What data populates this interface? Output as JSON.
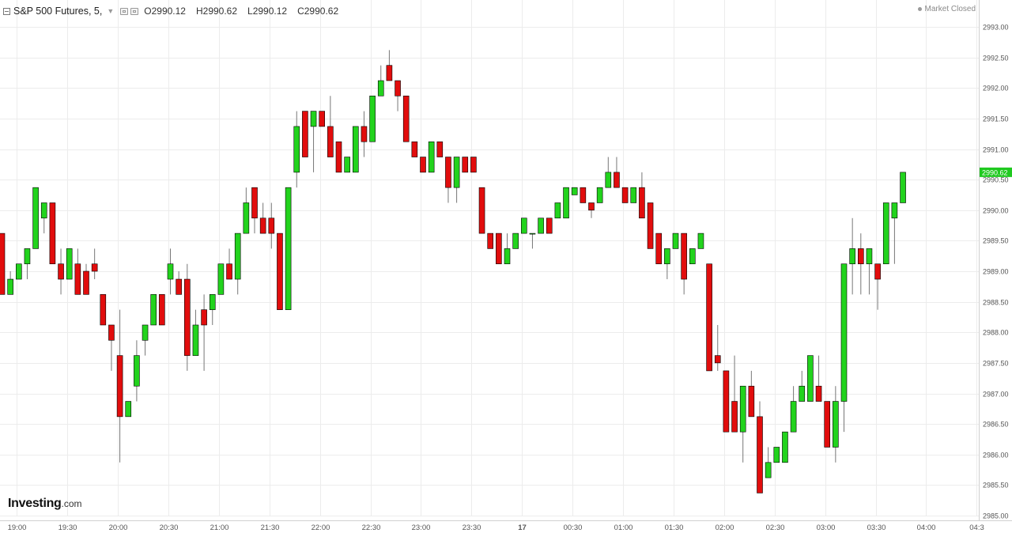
{
  "header": {
    "symbol": "S&P 500 Futures, 5,",
    "caret": "▼",
    "open": "O2990.12",
    "high": "H2990.62",
    "low": "L2990.12",
    "close": "C2990.62",
    "market_status": "Market Closed"
  },
  "logo": {
    "main": "Investing",
    "suffix": ".com"
  },
  "colors": {
    "up": "#22d31d",
    "down": "#e10d0d",
    "last_price_bg": "#1fc91f",
    "grid": "#ececec",
    "axis_text": "#555555"
  },
  "chart_data": {
    "type": "candlestick",
    "timeframe": "5",
    "last_price_label": "2990.62",
    "ylim": [
      2985.0,
      2993.0
    ],
    "y_ticks": [
      "2985.00",
      "2985.50",
      "2986.00",
      "2986.50",
      "2987.00",
      "2987.50",
      "2988.00",
      "2988.50",
      "2989.00",
      "2989.50",
      "2990.00",
      "2990.50",
      "2991.00",
      "2991.50",
      "2992.00",
      "2992.50",
      "2993.00"
    ],
    "x_ticks": [
      "19:00",
      "19:30",
      "20:00",
      "20:30",
      "21:00",
      "21:30",
      "22:00",
      "22:30",
      "23:00",
      "23:30",
      "17",
      "00:30",
      "01:00",
      "01:30",
      "02:00",
      "02:30",
      "03:00",
      "03:30",
      "04:00",
      "04:3"
    ],
    "candles": [
      {
        "o": 2989.62,
        "h": 2989.62,
        "l": 2988.62,
        "c": 2988.62
      },
      {
        "o": 2988.62,
        "h": 2989.0,
        "l": 2988.62,
        "c": 2988.87
      },
      {
        "o": 2988.87,
        "h": 2989.12,
        "l": 2988.87,
        "c": 2989.12
      },
      {
        "o": 2989.12,
        "h": 2989.37,
        "l": 2988.87,
        "c": 2989.37
      },
      {
        "o": 2989.37,
        "h": 2990.37,
        "l": 2989.37,
        "c": 2990.37
      },
      {
        "o": 2989.87,
        "h": 2990.12,
        "l": 2989.62,
        "c": 2990.12
      },
      {
        "o": 2990.12,
        "h": 2990.12,
        "l": 2989.12,
        "c": 2989.12
      },
      {
        "o": 2989.12,
        "h": 2989.37,
        "l": 2988.62,
        "c": 2988.87
      },
      {
        "o": 2988.87,
        "h": 2989.37,
        "l": 2988.87,
        "c": 2989.37
      },
      {
        "o": 2989.12,
        "h": 2989.37,
        "l": 2988.62,
        "c": 2988.62
      },
      {
        "o": 2989.0,
        "h": 2989.12,
        "l": 2988.62,
        "c": 2988.62
      },
      {
        "o": 2989.12,
        "h": 2989.37,
        "l": 2988.87,
        "c": 2989.0
      },
      {
        "o": 2988.62,
        "h": 2988.62,
        "l": 2988.12,
        "c": 2988.12
      },
      {
        "o": 2988.12,
        "h": 2988.12,
        "l": 2987.37,
        "c": 2987.87
      },
      {
        "o": 2987.62,
        "h": 2988.37,
        "l": 2985.87,
        "c": 2986.62
      },
      {
        "o": 2986.62,
        "h": 2986.87,
        "l": 2986.62,
        "c": 2986.87
      },
      {
        "o": 2987.12,
        "h": 2987.87,
        "l": 2986.87,
        "c": 2987.62
      },
      {
        "o": 2987.87,
        "h": 2988.12,
        "l": 2987.62,
        "c": 2988.12
      },
      {
        "o": 2988.12,
        "h": 2988.62,
        "l": 2988.12,
        "c": 2988.62
      },
      {
        "o": 2988.62,
        "h": 2988.62,
        "l": 2988.12,
        "c": 2988.12
      },
      {
        "o": 2988.87,
        "h": 2989.37,
        "l": 2988.62,
        "c": 2989.12
      },
      {
        "o": 2988.87,
        "h": 2989.0,
        "l": 2988.62,
        "c": 2988.62
      },
      {
        "o": 2988.87,
        "h": 2989.12,
        "l": 2987.37,
        "c": 2987.62
      },
      {
        "o": 2987.62,
        "h": 2988.37,
        "l": 2987.62,
        "c": 2988.12
      },
      {
        "o": 2988.37,
        "h": 2988.62,
        "l": 2987.37,
        "c": 2988.12
      },
      {
        "o": 2988.37,
        "h": 2988.62,
        "l": 2988.12,
        "c": 2988.62
      },
      {
        "o": 2988.62,
        "h": 2989.12,
        "l": 2988.62,
        "c": 2989.12
      },
      {
        "o": 2989.12,
        "h": 2989.37,
        "l": 2988.87,
        "c": 2988.87
      },
      {
        "o": 2988.87,
        "h": 2989.62,
        "l": 2988.62,
        "c": 2989.62
      },
      {
        "o": 2989.62,
        "h": 2990.37,
        "l": 2989.62,
        "c": 2990.12
      },
      {
        "o": 2990.37,
        "h": 2990.37,
        "l": 2989.62,
        "c": 2989.87
      },
      {
        "o": 2989.87,
        "h": 2990.12,
        "l": 2989.62,
        "c": 2989.62
      },
      {
        "o": 2989.87,
        "h": 2990.12,
        "l": 2989.37,
        "c": 2989.62
      },
      {
        "o": 2989.62,
        "h": 2989.62,
        "l": 2988.37,
        "c": 2988.37
      },
      {
        "o": 2988.37,
        "h": 2990.37,
        "l": 2988.37,
        "c": 2990.37
      },
      {
        "o": 2990.62,
        "h": 2991.62,
        "l": 2990.37,
        "c": 2991.37
      },
      {
        "o": 2991.62,
        "h": 2991.62,
        "l": 2990.87,
        "c": 2990.87
      },
      {
        "o": 2991.37,
        "h": 2991.62,
        "l": 2990.62,
        "c": 2991.62
      },
      {
        "o": 2991.62,
        "h": 2991.62,
        "l": 2991.37,
        "c": 2991.37
      },
      {
        "o": 2991.37,
        "h": 2991.87,
        "l": 2990.87,
        "c": 2990.87
      },
      {
        "o": 2991.12,
        "h": 2991.12,
        "l": 2990.62,
        "c": 2990.62
      },
      {
        "o": 2990.62,
        "h": 2990.87,
        "l": 2990.62,
        "c": 2990.87
      },
      {
        "o": 2990.62,
        "h": 2991.37,
        "l": 2990.62,
        "c": 2991.37
      },
      {
        "o": 2991.37,
        "h": 2991.62,
        "l": 2990.87,
        "c": 2991.12
      },
      {
        "o": 2991.12,
        "h": 2991.87,
        "l": 2991.12,
        "c": 2991.87
      },
      {
        "o": 2991.87,
        "h": 2992.37,
        "l": 2991.87,
        "c": 2992.12
      },
      {
        "o": 2992.37,
        "h": 2992.62,
        "l": 2992.12,
        "c": 2992.12
      },
      {
        "o": 2992.12,
        "h": 2992.12,
        "l": 2991.62,
        "c": 2991.87
      },
      {
        "o": 2991.87,
        "h": 2991.87,
        "l": 2991.12,
        "c": 2991.12
      },
      {
        "o": 2991.12,
        "h": 2991.12,
        "l": 2990.87,
        "c": 2990.87
      },
      {
        "o": 2990.87,
        "h": 2990.87,
        "l": 2990.62,
        "c": 2990.62
      },
      {
        "o": 2990.62,
        "h": 2991.12,
        "l": 2990.62,
        "c": 2991.12
      },
      {
        "o": 2991.12,
        "h": 2991.12,
        "l": 2990.87,
        "c": 2990.87
      },
      {
        "o": 2990.87,
        "h": 2990.87,
        "l": 2990.12,
        "c": 2990.37
      },
      {
        "o": 2990.37,
        "h": 2990.87,
        "l": 2990.12,
        "c": 2990.87
      },
      {
        "o": 2990.87,
        "h": 2990.87,
        "l": 2990.62,
        "c": 2990.62
      },
      {
        "o": 2990.87,
        "h": 2990.87,
        "l": 2990.62,
        "c": 2990.62
      },
      {
        "o": 2990.37,
        "h": 2990.37,
        "l": 2989.62,
        "c": 2989.62
      },
      {
        "o": 2989.62,
        "h": 2989.62,
        "l": 2989.37,
        "c": 2989.37
      },
      {
        "o": 2989.62,
        "h": 2989.62,
        "l": 2989.12,
        "c": 2989.12
      },
      {
        "o": 2989.12,
        "h": 2989.62,
        "l": 2989.12,
        "c": 2989.37
      },
      {
        "o": 2989.37,
        "h": 2989.62,
        "l": 2989.37,
        "c": 2989.62
      },
      {
        "o": 2989.62,
        "h": 2989.87,
        "l": 2989.62,
        "c": 2989.87
      },
      {
        "o": 2989.62,
        "h": 2989.62,
        "l": 2989.37,
        "c": 2989.62
      },
      {
        "o": 2989.62,
        "h": 2989.87,
        "l": 2989.62,
        "c": 2989.87
      },
      {
        "o": 2989.87,
        "h": 2989.87,
        "l": 2989.62,
        "c": 2989.62
      },
      {
        "o": 2989.87,
        "h": 2990.12,
        "l": 2989.87,
        "c": 2990.12
      },
      {
        "o": 2989.87,
        "h": 2990.37,
        "l": 2989.87,
        "c": 2990.37
      },
      {
        "o": 2990.25,
        "h": 2990.37,
        "l": 2990.25,
        "c": 2990.37
      },
      {
        "o": 2990.37,
        "h": 2990.37,
        "l": 2990.12,
        "c": 2990.12
      },
      {
        "o": 2990.12,
        "h": 2990.12,
        "l": 2989.87,
        "c": 2990.0
      },
      {
        "o": 2990.12,
        "h": 2990.37,
        "l": 2990.12,
        "c": 2990.37
      },
      {
        "o": 2990.37,
        "h": 2990.87,
        "l": 2990.37,
        "c": 2990.62
      },
      {
        "o": 2990.62,
        "h": 2990.87,
        "l": 2990.37,
        "c": 2990.37
      },
      {
        "o": 2990.37,
        "h": 2990.37,
        "l": 2990.12,
        "c": 2990.12
      },
      {
        "o": 2990.12,
        "h": 2990.37,
        "l": 2990.12,
        "c": 2990.37
      },
      {
        "o": 2990.37,
        "h": 2990.62,
        "l": 2989.87,
        "c": 2989.87
      },
      {
        "o": 2990.12,
        "h": 2990.12,
        "l": 2989.37,
        "c": 2989.37
      },
      {
        "o": 2989.62,
        "h": 2989.62,
        "l": 2989.12,
        "c": 2989.12
      },
      {
        "o": 2989.12,
        "h": 2989.37,
        "l": 2988.87,
        "c": 2989.37
      },
      {
        "o": 2989.37,
        "h": 2989.62,
        "l": 2989.37,
        "c": 2989.62
      },
      {
        "o": 2989.62,
        "h": 2989.62,
        "l": 2988.62,
        "c": 2988.87
      },
      {
        "o": 2989.12,
        "h": 2989.37,
        "l": 2989.12,
        "c": 2989.37
      },
      {
        "o": 2989.37,
        "h": 2989.62,
        "l": 2989.37,
        "c": 2989.62
      },
      {
        "o": 2989.12,
        "h": 2989.12,
        "l": 2987.37,
        "c": 2987.37
      },
      {
        "o": 2987.62,
        "h": 2988.12,
        "l": 2987.37,
        "c": 2987.5
      },
      {
        "o": 2987.37,
        "h": 2987.37,
        "l": 2986.37,
        "c": 2986.37
      },
      {
        "o": 2986.87,
        "h": 2987.62,
        "l": 2986.37,
        "c": 2986.37
      },
      {
        "o": 2986.37,
        "h": 2987.12,
        "l": 2985.87,
        "c": 2987.12
      },
      {
        "o": 2987.12,
        "h": 2987.37,
        "l": 2986.62,
        "c": 2986.62
      },
      {
        "o": 2986.62,
        "h": 2986.87,
        "l": 2985.37,
        "c": 2985.37
      },
      {
        "o": 2985.62,
        "h": 2986.12,
        "l": 2985.62,
        "c": 2985.87
      },
      {
        "o": 2985.87,
        "h": 2986.12,
        "l": 2985.87,
        "c": 2986.12
      },
      {
        "o": 2985.87,
        "h": 2986.37,
        "l": 2985.87,
        "c": 2986.37
      },
      {
        "o": 2986.37,
        "h": 2987.12,
        "l": 2986.37,
        "c": 2986.87
      },
      {
        "o": 2986.87,
        "h": 2987.37,
        "l": 2986.87,
        "c": 2987.12
      },
      {
        "o": 2986.87,
        "h": 2987.62,
        "l": 2986.87,
        "c": 2987.62
      },
      {
        "o": 2987.12,
        "h": 2987.62,
        "l": 2986.87,
        "c": 2986.87
      },
      {
        "o": 2986.87,
        "h": 2986.87,
        "l": 2986.12,
        "c": 2986.12
      },
      {
        "o": 2986.12,
        "h": 2987.12,
        "l": 2985.87,
        "c": 2986.87
      },
      {
        "o": 2986.87,
        "h": 2989.12,
        "l": 2986.37,
        "c": 2989.12
      },
      {
        "o": 2989.12,
        "h": 2989.87,
        "l": 2988.62,
        "c": 2989.37
      },
      {
        "o": 2989.37,
        "h": 2989.62,
        "l": 2988.62,
        "c": 2989.12
      },
      {
        "o": 2989.12,
        "h": 2989.37,
        "l": 2988.62,
        "c": 2989.37
      },
      {
        "o": 2989.12,
        "h": 2989.12,
        "l": 2988.37,
        "c": 2988.87
      },
      {
        "o": 2989.12,
        "h": 2990.12,
        "l": 2989.12,
        "c": 2990.12
      },
      {
        "o": 2989.87,
        "h": 2990.12,
        "l": 2989.12,
        "c": 2990.12
      },
      {
        "o": 2990.12,
        "h": 2990.62,
        "l": 2990.12,
        "c": 2990.62
      }
    ]
  }
}
